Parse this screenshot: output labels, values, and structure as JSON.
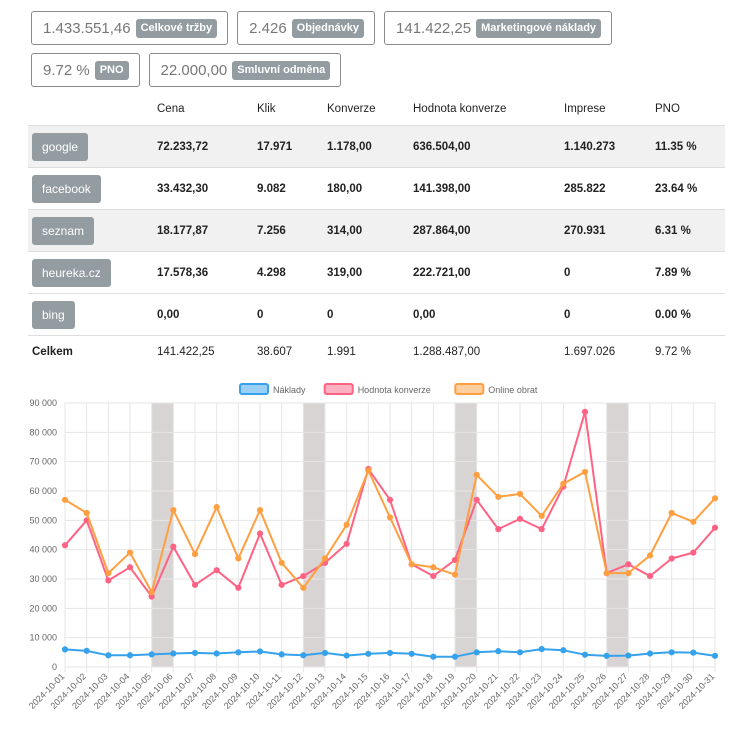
{
  "kpis": {
    "row1": [
      {
        "value": "1.433.551,46",
        "label": "Celkové tržby"
      },
      {
        "value": "2.426",
        "label": "Objednávky"
      },
      {
        "value": "141.422,25",
        "label": "Marketingové náklady"
      }
    ],
    "row2": [
      {
        "value": "9.72 %",
        "label": "PNO"
      },
      {
        "value": "22.000,00",
        "label": "Smluvní odměna"
      }
    ]
  },
  "table": {
    "headers": [
      "",
      "Cena",
      "Klik",
      "Konverze",
      "Hodnota konverze",
      "Imprese",
      "PNO"
    ],
    "rows": [
      {
        "source": "google",
        "cells": [
          "72.233,72",
          "17.971",
          "1.178,00",
          "636.504,00",
          "1.140.273",
          "11.35 %"
        ]
      },
      {
        "source": "facebook",
        "cells": [
          "33.432,30",
          "9.082",
          "180,00",
          "141.398,00",
          "285.822",
          "23.64 %"
        ]
      },
      {
        "source": "seznam",
        "cells": [
          "18.177,87",
          "7.256",
          "314,00",
          "287.864,00",
          "270.931",
          "6.31 %"
        ]
      },
      {
        "source": "heureka.cz",
        "cells": [
          "17.578,36",
          "4.298",
          "319,00",
          "222.721,00",
          "0",
          "7.89 %"
        ]
      },
      {
        "source": "bing",
        "cells": [
          "0,00",
          "0",
          "0",
          "0,00",
          "0",
          "0.00 %"
        ]
      }
    ],
    "total": {
      "label": "Celkem",
      "cells": [
        "141.422,25",
        "38.607",
        "1.991",
        "1.288.487,00",
        "1.697.026",
        "9.72 %"
      ]
    }
  },
  "chart_data": {
    "type": "line",
    "x": [
      "2024-10-01",
      "2024-10-02",
      "2024-10-03",
      "2024-10-04",
      "2024-10-05",
      "2024-10-06",
      "2024-10-07",
      "2024-10-08",
      "2024-10-09",
      "2024-10-10",
      "2024-10-11",
      "2024-10-12",
      "2024-10-13",
      "2024-10-14",
      "2024-10-15",
      "2024-10-16",
      "2024-10-17",
      "2024-10-18",
      "2024-10-19",
      "2024-10-20",
      "2024-10-21",
      "2024-10-22",
      "2024-10-23",
      "2024-10-24",
      "2024-10-25",
      "2024-10-26",
      "2024-10-27",
      "2024-10-28",
      "2024-10-29",
      "2024-10-30",
      "2024-10-31"
    ],
    "series": [
      {
        "name": "Náklady",
        "color": "#36a2eb",
        "fill": "#9ad0f5",
        "values": [
          6000,
          5500,
          4000,
          4000,
          4300,
          4600,
          4800,
          4600,
          5000,
          5300,
          4300,
          4000,
          4800,
          3900,
          4500,
          4800,
          4500,
          3500,
          3500,
          5000,
          5400,
          5000,
          6100,
          5700,
          4200,
          3800,
          3900,
          4600,
          5000,
          4900,
          3800
        ]
      },
      {
        "name": "Hodnota konverze",
        "color": "#ff6384",
        "fill": "#ffb1c1",
        "values": [
          41500,
          50000,
          29500,
          34000,
          24000,
          41000,
          28000,
          33000,
          27000,
          45500,
          28000,
          31000,
          35500,
          42000,
          67500,
          57000,
          35000,
          31000,
          36500,
          57000,
          47000,
          50500,
          47000,
          61500,
          87000,
          32000,
          35000,
          31000,
          37000,
          39000,
          47500
        ]
      },
      {
        "name": "Online obrat",
        "color": "#ff9f40",
        "fill": "#ffcf9f",
        "values": [
          57000,
          52500,
          32000,
          39000,
          25500,
          53500,
          38500,
          54500,
          37000,
          53500,
          35500,
          27000,
          37000,
          48500,
          67000,
          51000,
          35000,
          34000,
          31500,
          65500,
          58000,
          59000,
          51500,
          62500,
          66500,
          32000,
          32000,
          38000,
          52500,
          49500,
          57500
        ]
      }
    ],
    "ylim": [
      0,
      90000
    ],
    "yticks": [
      "0",
      "10 000",
      "20 000",
      "30 000",
      "40 000",
      "50 000",
      "60 000",
      "70 000",
      "80 000",
      "90 000"
    ],
    "weekend_bands": [
      [
        "2024-10-05",
        "2024-10-06"
      ],
      [
        "2024-10-12",
        "2024-10-13"
      ],
      [
        "2024-10-19",
        "2024-10-20"
      ],
      [
        "2024-10-26",
        "2024-10-27"
      ]
    ],
    "band_color": "#d8d4d4",
    "legend": "top",
    "grid": true
  }
}
